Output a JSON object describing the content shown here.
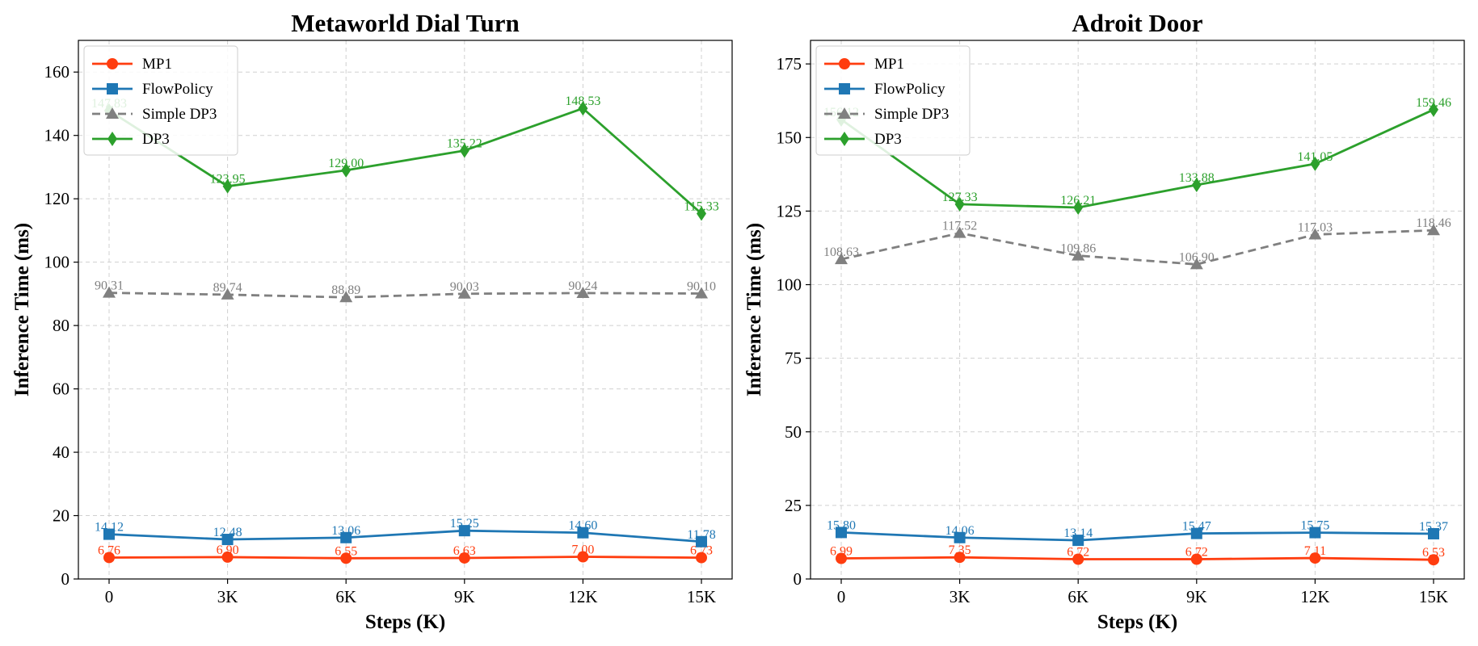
{
  "chart_data": [
    {
      "type": "line",
      "title": "Metaworld Dial Turn",
      "xlabel": "Steps (K)",
      "ylabel": "Inference Time (ms)",
      "categories": [
        "0",
        "3K",
        "6K",
        "9K",
        "12K",
        "15K"
      ],
      "ylim": [
        0,
        170
      ],
      "yticks": [
        0,
        20,
        40,
        60,
        80,
        100,
        120,
        140,
        160
      ],
      "grid": true,
      "legend_position": "top-left",
      "series": [
        {
          "name": "MP1",
          "color": "#ff3d0f",
          "marker": "circle",
          "dashed": false,
          "values": [
            6.76,
            6.9,
            6.55,
            6.63,
            7.0,
            6.73
          ],
          "labels": [
            "6.76",
            "6.90",
            "6.55",
            "6.63",
            "7.00",
            "6.73"
          ]
        },
        {
          "name": "FlowPolicy",
          "color": "#1f77b4",
          "marker": "square",
          "dashed": false,
          "values": [
            14.12,
            12.48,
            13.06,
            15.25,
            14.6,
            11.78
          ],
          "labels": [
            "14.12",
            "12.48",
            "13.06",
            "15.25",
            "14.60",
            "11.78"
          ]
        },
        {
          "name": "Simple DP3",
          "color": "#808080",
          "marker": "triangle",
          "dashed": true,
          "values": [
            90.31,
            89.74,
            88.89,
            90.03,
            90.24,
            90.1
          ],
          "labels": [
            "90.31",
            "89.74",
            "88.89",
            "90.03",
            "90.24",
            "90.10"
          ]
        },
        {
          "name": "DP3",
          "color": "#2ca02c",
          "marker": "diamond",
          "dashed": false,
          "values": [
            147.83,
            123.95,
            129.0,
            135.22,
            148.53,
            115.33
          ],
          "labels": [
            "147.83",
            "123.95",
            "129.00",
            "135.22",
            "148.53",
            "115.33"
          ]
        }
      ]
    },
    {
      "type": "line",
      "title": "Adroit Door",
      "xlabel": "Steps (K)",
      "ylabel": "Inference Time (ms)",
      "categories": [
        "0",
        "3K",
        "6K",
        "9K",
        "12K",
        "15K"
      ],
      "ylim": [
        0,
        183
      ],
      "yticks": [
        0,
        25,
        50,
        75,
        100,
        125,
        150,
        175
      ],
      "grid": true,
      "legend_position": "top-left",
      "series": [
        {
          "name": "MP1",
          "color": "#ff3d0f",
          "marker": "circle",
          "dashed": false,
          "values": [
            6.99,
            7.35,
            6.72,
            6.72,
            7.11,
            6.53
          ],
          "labels": [
            "6.99",
            "7.35",
            "6.72",
            "6.72",
            "7.11",
            "6.53"
          ]
        },
        {
          "name": "FlowPolicy",
          "color": "#1f77b4",
          "marker": "square",
          "dashed": false,
          "values": [
            15.8,
            14.06,
            13.14,
            15.47,
            15.75,
            15.37
          ],
          "labels": [
            "15.80",
            "14.06",
            "13.14",
            "15.47",
            "15.75",
            "15.37"
          ]
        },
        {
          "name": "Simple DP3",
          "color": "#808080",
          "marker": "triangle",
          "dashed": true,
          "values": [
            108.63,
            117.52,
            109.86,
            106.9,
            117.03,
            118.46
          ],
          "labels": [
            "108.63",
            "117.52",
            "109.86",
            "106.90",
            "117.03",
            "118.46"
          ]
        },
        {
          "name": "DP3",
          "color": "#2ca02c",
          "marker": "diamond",
          "dashed": false,
          "values": [
            156.12,
            127.33,
            126.21,
            133.88,
            141.05,
            159.46
          ],
          "labels": [
            "156.12",
            "127.33",
            "126.21",
            "133.88",
            "141.05",
            "159.46"
          ]
        }
      ]
    }
  ]
}
